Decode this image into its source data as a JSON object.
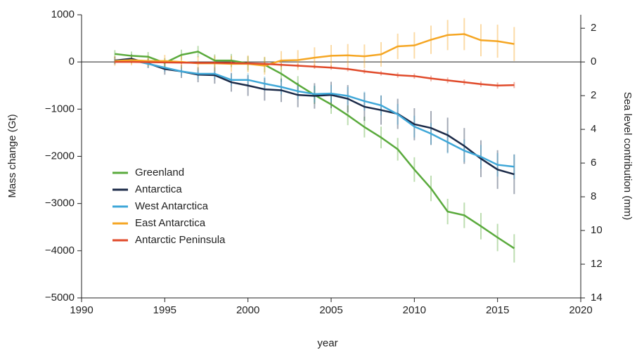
{
  "chart_data": {
    "type": "line",
    "xlabel": "year",
    "ylabel": "Mass change (Gt)",
    "y2label": "Sea level contribution (mm)",
    "x": [
      1992,
      1993,
      1994,
      1995,
      1996,
      1997,
      1998,
      1999,
      2000,
      2001,
      2002,
      2003,
      2004,
      2005,
      2006,
      2007,
      2008,
      2009,
      2010,
      2011,
      2012,
      2013,
      2014,
      2015,
      2016
    ],
    "xlim": [
      1990,
      2020
    ],
    "xticks": [
      1990,
      1995,
      2000,
      2005,
      2010,
      2015,
      2020
    ],
    "ylim": [
      -5000,
      1000
    ],
    "yticks": [
      1000,
      0,
      {
        "value": -1000,
        "label": "−1000"
      },
      {
        "value": -2000,
        "label": "−2000"
      },
      {
        "value": -3000,
        "label": "−3000"
      },
      {
        "value": -4000,
        "label": "−4000"
      },
      {
        "value": -5000,
        "label": "−5000"
      }
    ],
    "y2lim": [
      14,
      -2.8
    ],
    "y2ticks": [
      {
        "value": -2,
        "label": "2"
      },
      0,
      2,
      4,
      6,
      8,
      10,
      12,
      14
    ],
    "legend": "lower left",
    "series": [
      {
        "name": "Greenland",
        "color": "#5aaa3c",
        "values": [
          170,
          130,
          110,
          -20,
          150,
          220,
          30,
          30,
          -30,
          -60,
          -250,
          -480,
          -700,
          -900,
          -1130,
          -1380,
          -1600,
          -1850,
          -2280,
          -2680,
          -3170,
          -3250,
          -3480,
          -3720,
          -3950
        ],
        "errors": [
          80,
          90,
          100,
          100,
          110,
          120,
          130,
          140,
          150,
          160,
          170,
          180,
          190,
          200,
          210,
          220,
          230,
          240,
          260,
          270,
          270,
          270,
          280,
          290,
          300
        ]
      },
      {
        "name": "Antarctica",
        "color": "#1b2a48",
        "values": [
          30,
          70,
          -30,
          -150,
          -200,
          -270,
          -280,
          -430,
          -500,
          -580,
          -600,
          -700,
          -720,
          -700,
          -780,
          -950,
          -1020,
          -1100,
          -1320,
          -1400,
          -1550,
          -1780,
          -2050,
          -2280,
          -2380
        ],
        "errors": [
          80,
          90,
          100,
          120,
          140,
          160,
          180,
          200,
          220,
          240,
          250,
          260,
          270,
          280,
          290,
          300,
          310,
          320,
          340,
          360,
          370,
          380,
          390,
          410,
          420
        ]
      },
      {
        "name": "West Antarctica",
        "color": "#3ea7d8",
        "values": [
          20,
          40,
          -40,
          -120,
          -200,
          -250,
          -250,
          -380,
          -380,
          -460,
          -530,
          -620,
          -680,
          -670,
          -720,
          -830,
          -920,
          -1110,
          -1370,
          -1520,
          -1700,
          -1880,
          -2010,
          -2180,
          -2220
        ],
        "errors": [
          60,
          70,
          80,
          90,
          100,
          110,
          120,
          130,
          140,
          150,
          160,
          170,
          180,
          180,
          190,
          200,
          210,
          220,
          230,
          230,
          240,
          240,
          250,
          250,
          260
        ]
      },
      {
        "name": "East Antarctica",
        "color": "#f5a623",
        "values": [
          20,
          40,
          20,
          20,
          0,
          -30,
          -30,
          -40,
          -40,
          -80,
          30,
          40,
          90,
          130,
          140,
          120,
          160,
          330,
          350,
          470,
          570,
          590,
          460,
          440,
          380
        ],
        "errors": [
          100,
          110,
          120,
          130,
          140,
          150,
          160,
          170,
          180,
          190,
          200,
          210,
          220,
          230,
          240,
          250,
          260,
          270,
          280,
          300,
          320,
          340,
          340,
          350,
          360
        ]
      },
      {
        "name": "Antarctic Peninsula",
        "color": "#e04a2a",
        "values": [
          0,
          0,
          -5,
          -10,
          -15,
          -20,
          -20,
          -25,
          -30,
          -40,
          -60,
          -80,
          -100,
          -120,
          -150,
          -200,
          -240,
          -280,
          -300,
          -350,
          -390,
          -430,
          -470,
          -500,
          -490
        ],
        "errors": [
          20,
          20,
          25,
          25,
          30,
          30,
          30,
          35,
          35,
          40,
          40,
          40,
          45,
          45,
          50,
          50,
          50,
          55,
          55,
          60,
          60,
          60,
          60,
          65,
          65
        ]
      }
    ]
  }
}
